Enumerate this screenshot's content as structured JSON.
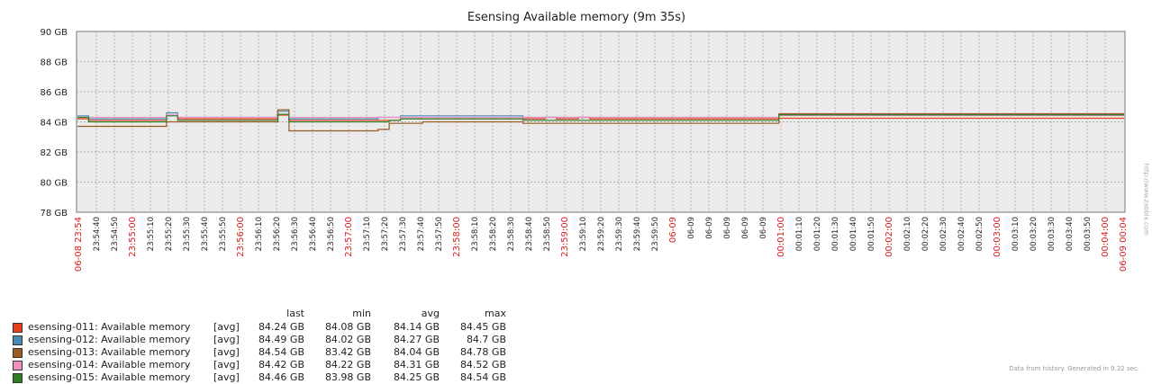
{
  "chart_data": {
    "type": "line",
    "title": "Esensing Available memory (9m 35s)",
    "y_unit": "GB",
    "ylim": [
      78,
      90
    ],
    "y_ticks": [
      "90 GB",
      "88 GB",
      "86 GB",
      "84 GB",
      "82 GB",
      "80 GB",
      "78 GB"
    ],
    "x_tick_labels": [
      "06-08 23:54",
      "23:54:40",
      "23:54:50",
      "23:55:00",
      "23:55:10",
      "23:55:20",
      "23:55:30",
      "23:55:40",
      "23:55:50",
      "23:56:00",
      "23:56:10",
      "23:56:20",
      "23:56:30",
      "23:56:40",
      "23:56:50",
      "23:57:00",
      "23:57:10",
      "23:57:20",
      "23:57:30",
      "23:57:40",
      "23:57:50",
      "23:58:00",
      "23:58:10",
      "23:58:20",
      "23:58:30",
      "23:58:40",
      "23:58:50",
      "23:59:00",
      "23:59:10",
      "23:59:20",
      "23:59:30",
      "23:59:40",
      "23:59:50",
      "06-09",
      "06-09",
      "06-09",
      "06-09",
      "06-09",
      "06-09",
      "00:01:00",
      "00:01:10",
      "00:01:20",
      "00:01:30",
      "00:01:40",
      "00:01:50",
      "00:02:00",
      "00:02:10",
      "00:02:20",
      "00:02:30",
      "00:02:40",
      "00:02:50",
      "00:03:00",
      "00:03:10",
      "00:03:20",
      "00:03:30",
      "00:03:40",
      "00:03:50",
      "00:04:00",
      "06-09 00:04"
    ],
    "x_tick_red": [
      0,
      3,
      9,
      15,
      21,
      27,
      33,
      39,
      45,
      51,
      57,
      58
    ],
    "grid": true,
    "legend_position": "bottom",
    "series": [
      {
        "name": "esensing-011: Available memory",
        "color": "#e8401c",
        "values": [
          84.2,
          84.1,
          84.1,
          84.1,
          84.1,
          84.1,
          84.1,
          84.1,
          84.45,
          84.2,
          84.2,
          84.2,
          84.2,
          84.2,
          84.2,
          84.2,
          84.2,
          84.2,
          84.45,
          84.1,
          84.1,
          84.1,
          84.1,
          84.1,
          84.1,
          84.1,
          84.1,
          84.1,
          84.1,
          84.2,
          84.2,
          84.2,
          84.2,
          84.2,
          84.2,
          84.2,
          84.2,
          84.2,
          84.2,
          84.2,
          84.2,
          84.2,
          84.3,
          84.2,
          84.2,
          84.3,
          84.2,
          84.2,
          84.2,
          84.2,
          84.2,
          84.2,
          84.2,
          84.2,
          84.2,
          84.2,
          84.2,
          84.2,
          84.2,
          84.2,
          84.2,
          84.2,
          84.2,
          84.24,
          84.24,
          84.24,
          84.24,
          84.24,
          84.24,
          84.24,
          84.24,
          84.24,
          84.24,
          84.24,
          84.24,
          84.24,
          84.24,
          84.24,
          84.24,
          84.24,
          84.24,
          84.24,
          84.24,
          84.24,
          84.24,
          84.24,
          84.24,
          84.24,
          84.24,
          84.24,
          84.24,
          84.24,
          84.24,
          84.24,
          84.24
        ]
      },
      {
        "name": "esensing-012: Available memory",
        "color": "#4a8bb6",
        "values": [
          84.4,
          84.2,
          84.2,
          84.2,
          84.2,
          84.2,
          84.2,
          84.2,
          84.6,
          84.3,
          84.3,
          84.3,
          84.3,
          84.3,
          84.3,
          84.3,
          84.3,
          84.3,
          84.7,
          84.2,
          84.2,
          84.2,
          84.2,
          84.2,
          84.2,
          84.2,
          84.2,
          84.3,
          84.3,
          84.4,
          84.4,
          84.4,
          84.4,
          84.4,
          84.4,
          84.4,
          84.4,
          84.4,
          84.4,
          84.4,
          84.3,
          84.3,
          84.3,
          84.3,
          84.3,
          84.3,
          84.3,
          84.3,
          84.3,
          84.3,
          84.3,
          84.3,
          84.3,
          84.3,
          84.3,
          84.3,
          84.3,
          84.3,
          84.3,
          84.3,
          84.3,
          84.3,
          84.3,
          84.49,
          84.49,
          84.49,
          84.49,
          84.49,
          84.49,
          84.49,
          84.49,
          84.49,
          84.49,
          84.49,
          84.49,
          84.49,
          84.49,
          84.49,
          84.49,
          84.49,
          84.49,
          84.49,
          84.49,
          84.49,
          84.49,
          84.49,
          84.49,
          84.49,
          84.49,
          84.49,
          84.49,
          84.49,
          84.49,
          84.49,
          84.49
        ]
      },
      {
        "name": "esensing-013: Available memory",
        "color": "#9a5a20",
        "values": [
          83.7,
          83.7,
          83.7,
          83.7,
          83.7,
          83.7,
          83.7,
          83.7,
          84.0,
          84.0,
          84.0,
          84.0,
          84.0,
          84.0,
          84.0,
          84.0,
          84.0,
          84.0,
          84.8,
          83.4,
          83.4,
          83.4,
          83.4,
          83.4,
          83.4,
          83.4,
          83.4,
          83.5,
          83.9,
          83.9,
          83.9,
          84.0,
          84.0,
          84.0,
          84.0,
          84.0,
          84.0,
          84.0,
          84.0,
          84.0,
          83.9,
          83.9,
          83.9,
          83.9,
          83.9,
          83.9,
          83.9,
          83.9,
          83.9,
          83.9,
          83.9,
          83.9,
          83.9,
          83.9,
          83.9,
          83.9,
          83.9,
          83.9,
          83.9,
          83.9,
          83.9,
          83.9,
          83.9,
          84.54,
          84.54,
          84.54,
          84.54,
          84.54,
          84.54,
          84.54,
          84.54,
          84.54,
          84.54,
          84.54,
          84.54,
          84.54,
          84.54,
          84.54,
          84.54,
          84.54,
          84.54,
          84.54,
          84.54,
          84.54,
          84.54,
          84.54,
          84.54,
          84.54,
          84.54,
          84.54,
          84.54,
          84.54,
          84.54,
          84.54,
          84.54
        ]
      },
      {
        "name": "esensing-014: Available memory",
        "color": "#f08fc0",
        "values": [
          84.3,
          84.3,
          84.3,
          84.3,
          84.3,
          84.3,
          84.3,
          84.3,
          84.45,
          84.3,
          84.3,
          84.3,
          84.3,
          84.3,
          84.3,
          84.3,
          84.3,
          84.3,
          84.5,
          84.3,
          84.3,
          84.3,
          84.3,
          84.3,
          84.3,
          84.3,
          84.3,
          84.3,
          84.3,
          84.3,
          84.3,
          84.3,
          84.3,
          84.3,
          84.3,
          84.3,
          84.3,
          84.3,
          84.3,
          84.3,
          84.3,
          84.3,
          84.3,
          84.3,
          84.3,
          84.3,
          84.3,
          84.3,
          84.3,
          84.3,
          84.3,
          84.3,
          84.3,
          84.3,
          84.3,
          84.3,
          84.3,
          84.3,
          84.3,
          84.3,
          84.3,
          84.3,
          84.3,
          84.42,
          84.42,
          84.42,
          84.42,
          84.42,
          84.42,
          84.42,
          84.42,
          84.42,
          84.42,
          84.42,
          84.42,
          84.42,
          84.42,
          84.42,
          84.42,
          84.42,
          84.42,
          84.42,
          84.42,
          84.42,
          84.42,
          84.42,
          84.42,
          84.42,
          84.42,
          84.42,
          84.42,
          84.42,
          84.42,
          84.42,
          84.42
        ]
      },
      {
        "name": "esensing-015: Available memory",
        "color": "#2e7d27",
        "values": [
          84.3,
          84.0,
          84.0,
          84.0,
          84.0,
          84.0,
          84.0,
          84.0,
          84.4,
          84.1,
          84.1,
          84.1,
          84.1,
          84.1,
          84.1,
          84.1,
          84.1,
          84.1,
          84.5,
          84.0,
          84.0,
          84.0,
          84.0,
          84.0,
          84.0,
          84.0,
          84.0,
          84.0,
          84.1,
          84.2,
          84.2,
          84.2,
          84.2,
          84.2,
          84.2,
          84.2,
          84.2,
          84.2,
          84.2,
          84.2,
          84.1,
          84.1,
          84.1,
          84.1,
          84.1,
          84.1,
          84.1,
          84.1,
          84.1,
          84.1,
          84.1,
          84.1,
          84.1,
          84.1,
          84.1,
          84.1,
          84.1,
          84.1,
          84.1,
          84.1,
          84.1,
          84.1,
          84.1,
          84.46,
          84.46,
          84.46,
          84.46,
          84.46,
          84.46,
          84.46,
          84.46,
          84.46,
          84.46,
          84.46,
          84.46,
          84.46,
          84.46,
          84.46,
          84.46,
          84.46,
          84.46,
          84.46,
          84.46,
          84.46,
          84.46,
          84.46,
          84.46,
          84.46,
          84.46,
          84.46,
          84.46,
          84.46,
          84.46,
          84.46,
          84.46
        ]
      }
    ]
  },
  "legend": {
    "headers": {
      "last": "last",
      "min": "min",
      "avg": "avg",
      "max": "max"
    },
    "rows": [
      {
        "name": "esensing-011: Available memory",
        "fn": "[avg]",
        "last": "84.24 GB",
        "min": "84.08 GB",
        "avg": "84.14 GB",
        "max": "84.45 GB",
        "color": "#e8401c"
      },
      {
        "name": "esensing-012: Available memory",
        "fn": "[avg]",
        "last": "84.49 GB",
        "min": "84.02 GB",
        "avg": "84.27 GB",
        "max": "84.7 GB",
        "color": "#4a8bb6"
      },
      {
        "name": "esensing-013: Available memory",
        "fn": "[avg]",
        "last": "84.54 GB",
        "min": "83.42 GB",
        "avg": "84.04 GB",
        "max": "84.78 GB",
        "color": "#9a5a20"
      },
      {
        "name": "esensing-014: Available memory",
        "fn": "[avg]",
        "last": "84.42 GB",
        "min": "84.22 GB",
        "avg": "84.31 GB",
        "max": "84.52 GB",
        "color": "#f08fc0"
      },
      {
        "name": "esensing-015: Available memory",
        "fn": "[avg]",
        "last": "84.46 GB",
        "min": "83.98 GB",
        "avg": "84.25 GB",
        "max": "84.54 GB",
        "color": "#2e7d27"
      }
    ]
  },
  "footer": "Data from history. Generated in 0.32 sec.",
  "side_label": "http://www.zabbix.com"
}
